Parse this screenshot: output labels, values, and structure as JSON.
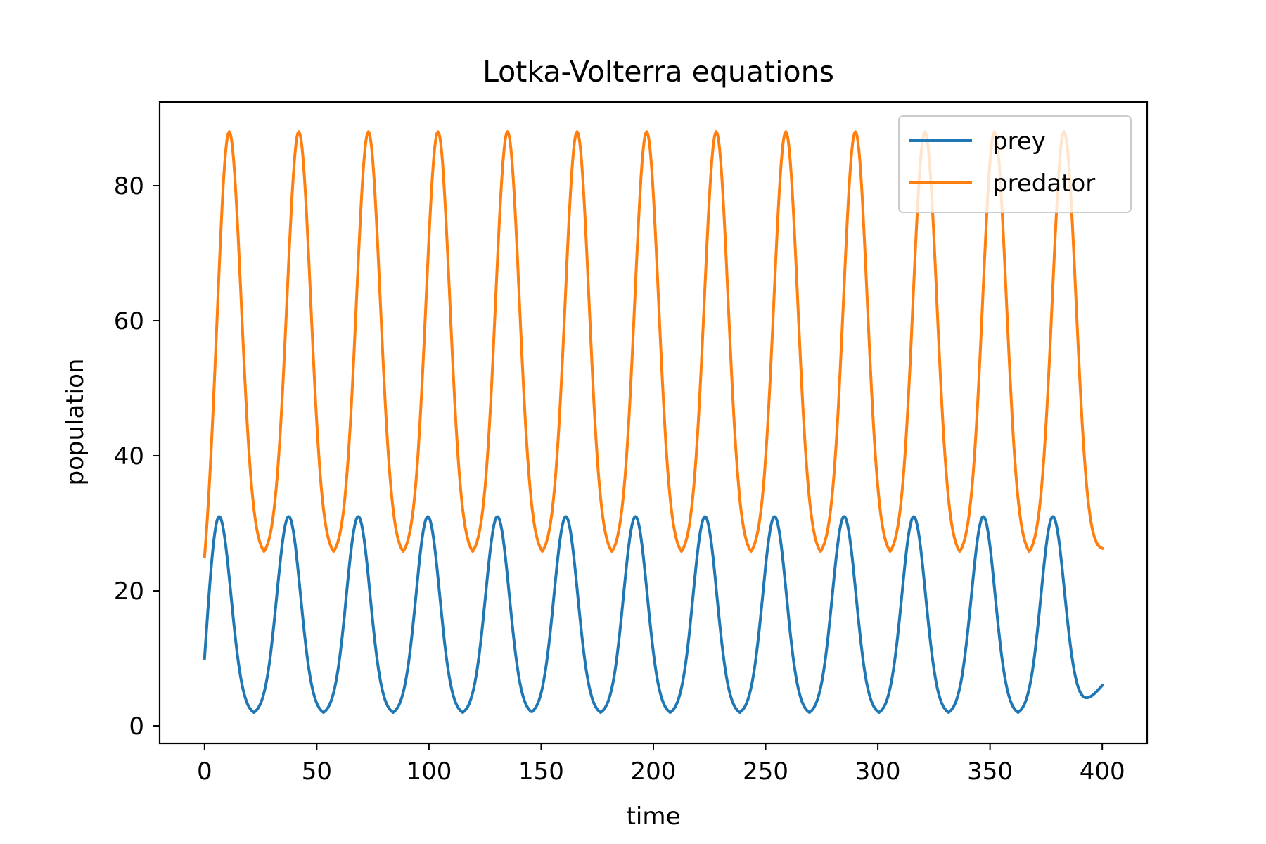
{
  "chart_data": {
    "type": "line",
    "title": "Lotka-Volterra equations",
    "xlabel": "time",
    "ylabel": "population",
    "xlim": [
      -20,
      420
    ],
    "ylim": [
      -2.6,
      92.4
    ],
    "xticks": [
      0,
      50,
      100,
      150,
      200,
      250,
      300,
      350,
      400
    ],
    "yticks": [
      0,
      20,
      40,
      60,
      80
    ],
    "grid": false,
    "legend_position": "top-right",
    "x_start": 0,
    "x_end": 400,
    "series": [
      {
        "name": "prey",
        "color": "#1f77b4",
        "start_value": 10.0,
        "end_value": 6.0,
        "peak_times": [
          6.5,
          37.5,
          68.5,
          99.5,
          130.5,
          161,
          192,
          223,
          254,
          285,
          316,
          347,
          378
        ],
        "peak_value": 31.0,
        "trough_value": 1.6
      },
      {
        "name": "predator",
        "color": "#ff7f0e",
        "start_value": 25.0,
        "end_value": 26.3,
        "peak_times": [
          11,
          42,
          73,
          104,
          135,
          166,
          197,
          228,
          259,
          290,
          321,
          352,
          383
        ],
        "peak_value": 88.0,
        "trough_value": 25.0
      }
    ]
  }
}
